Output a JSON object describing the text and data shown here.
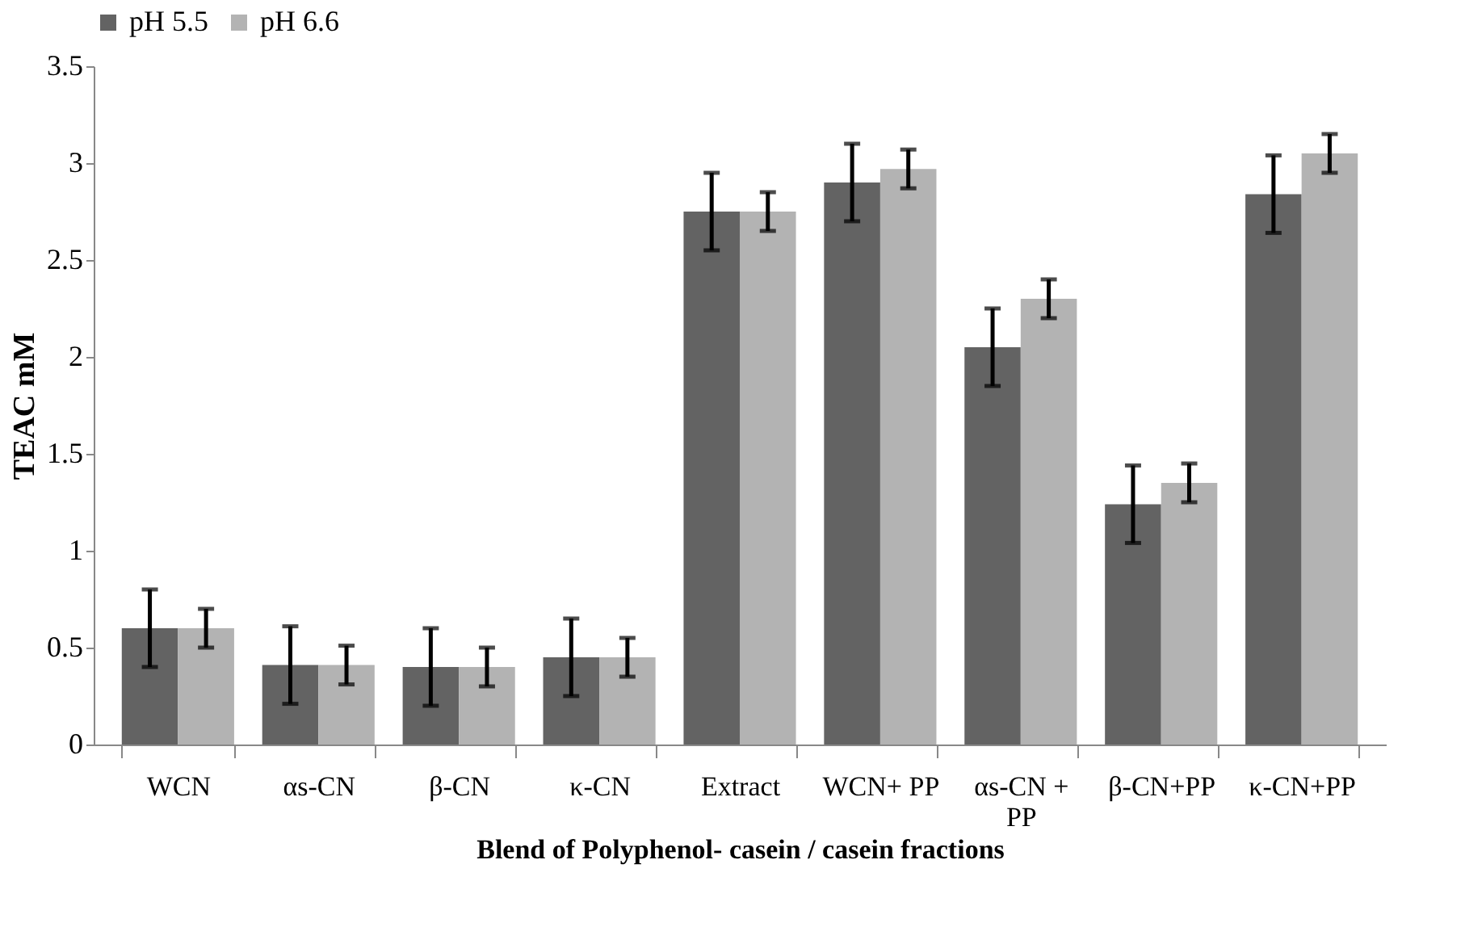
{
  "chart_data": {
    "type": "bar",
    "xlabel": "Blend of Polyphenol- casein / casein fractions",
    "ylabel": "TEAC mM",
    "categories": [
      "WCN",
      "αs-CN",
      "β-CN",
      "κ-CN",
      "Extract",
      "WCN+ PP",
      "αs-CN +\nPP",
      "β-CN+PP",
      "κ-CN+PP"
    ],
    "series": [
      {
        "name": "pH 5.5",
        "color": "#636363",
        "values": [
          0.6,
          0.41,
          0.4,
          0.45,
          2.75,
          2.9,
          2.05,
          1.24,
          2.84
        ],
        "errors": [
          0.2,
          0.2,
          0.2,
          0.2,
          0.2,
          0.2,
          0.2,
          0.2,
          0.2
        ]
      },
      {
        "name": "pH 6.6",
        "color": "#b3b3b3",
        "values": [
          0.6,
          0.41,
          0.4,
          0.45,
          2.75,
          2.97,
          2.3,
          1.35,
          3.05
        ],
        "errors": [
          0.1,
          0.1,
          0.1,
          0.1,
          0.1,
          0.1,
          0.1,
          0.1,
          0.1
        ]
      }
    ],
    "ylim": [
      0,
      3.5
    ],
    "yticks": [
      0,
      0.5,
      1,
      1.5,
      2,
      2.5,
      3,
      3.5
    ],
    "grid": false,
    "legend": "top"
  }
}
